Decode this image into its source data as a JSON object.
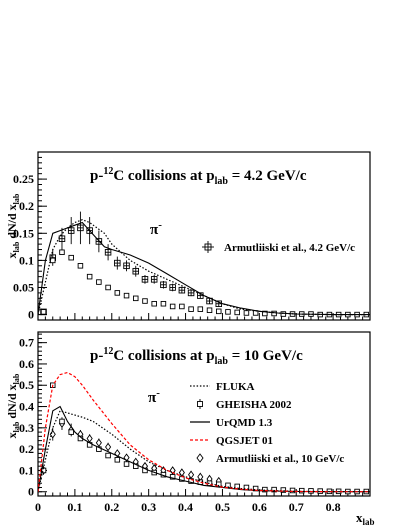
{
  "chart_data": [
    {
      "type": "line",
      "title": "p-¹²C collisions at pₗₐᵦ = 4.2 GeV/c",
      "title_parts": {
        "a": "p-",
        "sup": "12",
        "b": "C collisions at p",
        "sub": "lab",
        "c": " = 4.2 GeV/c"
      },
      "particle_label": "π",
      "particle_sup": "-",
      "ylabel": "x_lab dN/d x_lab",
      "ylabel_parts": {
        "x": "x",
        "sub1": "lab",
        "mid": " dN/d x",
        "sub2": "lab"
      },
      "xlim": [
        0,
        0.9
      ],
      "ylim": [
        -0.01,
        0.3
      ],
      "y_ticks": [
        "0",
        "0.05",
        "0.1",
        "0.15",
        "0.2",
        "0.25"
      ],
      "y_tick_values": [
        0,
        0.05,
        0.1,
        0.15,
        0.2,
        0.25
      ],
      "legend": [
        {
          "label": "Armutliiski et al., 4.2 GeV/c",
          "marker": "cross-square"
        }
      ],
      "series": [
        {
          "name": "Armutliiski et al., 4.2 GeV/c",
          "style": "data-cross",
          "x": [
            0.015,
            0.04,
            0.065,
            0.09,
            0.115,
            0.14,
            0.165,
            0.19,
            0.215,
            0.24,
            0.265,
            0.29,
            0.315,
            0.34,
            0.365,
            0.39,
            0.415,
            0.44,
            0.465,
            0.49
          ],
          "y": [
            0.005,
            0.105,
            0.14,
            0.155,
            0.16,
            0.155,
            0.135,
            0.115,
            0.095,
            0.09,
            0.08,
            0.065,
            0.065,
            0.055,
            0.05,
            0.045,
            0.04,
            0.035,
            0.025,
            0.02
          ],
          "err": [
            0.003,
            0.015,
            0.02,
            0.025,
            0.03,
            0.025,
            0.02,
            0.015,
            0.012,
            0.01,
            0.01,
            0.008,
            0.008,
            0.007,
            0.007,
            0.006,
            0.006,
            0.005,
            0.004,
            0.004
          ]
        },
        {
          "name": "GHEISHA 2002",
          "style": "square",
          "x": [
            0.015,
            0.04,
            0.065,
            0.09,
            0.115,
            0.14,
            0.165,
            0.19,
            0.215,
            0.24,
            0.265,
            0.29,
            0.315,
            0.34,
            0.365,
            0.39,
            0.415,
            0.44,
            0.465,
            0.49,
            0.515,
            0.54,
            0.565,
            0.59,
            0.615,
            0.64,
            0.665,
            0.69,
            0.715,
            0.74,
            0.765,
            0.79,
            0.815,
            0.84,
            0.865,
            0.89
          ],
          "y": [
            0.005,
            0.1,
            0.115,
            0.105,
            0.09,
            0.07,
            0.06,
            0.05,
            0.04,
            0.035,
            0.03,
            0.025,
            0.02,
            0.02,
            0.015,
            0.015,
            0.01,
            0.01,
            0.008,
            0.006,
            0.005,
            0.004,
            0.003,
            0.003,
            0.002,
            0.002,
            0.001,
            0.001,
            0.001,
            0.001,
            0.0,
            0.0,
            0.0,
            0.0,
            0.0,
            0.0
          ]
        },
        {
          "name": "FLUKA",
          "style": "dotted",
          "x": [
            0.0,
            0.02,
            0.04,
            0.06,
            0.08,
            0.1,
            0.12,
            0.14,
            0.16,
            0.18,
            0.2,
            0.25,
            0.3,
            0.35,
            0.4,
            0.45,
            0.5,
            0.55,
            0.6,
            0.65,
            0.7,
            0.8,
            0.9
          ],
          "y": [
            0.0,
            0.06,
            0.12,
            0.145,
            0.16,
            0.17,
            0.175,
            0.17,
            0.16,
            0.15,
            0.13,
            0.1,
            0.08,
            0.065,
            0.05,
            0.035,
            0.02,
            0.01,
            0.006,
            0.003,
            0.001,
            0.0,
            0.0
          ]
        },
        {
          "name": "UrQMD 1.3",
          "style": "solid",
          "x": [
            0.0,
            0.02,
            0.04,
            0.06,
            0.08,
            0.1,
            0.12,
            0.14,
            0.16,
            0.18,
            0.2,
            0.25,
            0.3,
            0.35,
            0.4,
            0.45,
            0.5,
            0.55,
            0.6,
            0.65,
            0.7,
            0.8,
            0.9
          ],
          "y": [
            0.0,
            0.1,
            0.15,
            0.155,
            0.16,
            0.165,
            0.17,
            0.155,
            0.14,
            0.125,
            0.12,
            0.11,
            0.095,
            0.075,
            0.055,
            0.035,
            0.02,
            0.012,
            0.006,
            0.003,
            0.001,
            0.0,
            0.0
          ]
        }
      ]
    },
    {
      "type": "line",
      "title": "p-¹²C collisions at pₗₐᵦ = 10 GeV/c",
      "title_parts": {
        "a": "p-",
        "sup": "12",
        "b": "C collisions at p",
        "sub": "lab",
        "c": " = 10 GeV/c"
      },
      "particle_label": "π",
      "particle_sup": "-",
      "ylabel": "x_lab dN/d x_lab",
      "ylabel_parts": {
        "x": "x",
        "sub1": "lab",
        "mid": " dN/d x",
        "sub2": "lab"
      },
      "xlabel": "x_lab",
      "xlabel_parts": {
        "x": "x",
        "sub": "lab"
      },
      "xlim": [
        0,
        0.9
      ],
      "ylim": [
        -0.02,
        0.75
      ],
      "x_ticks": [
        "0",
        "0.1",
        "0.2",
        "0.3",
        "0.4",
        "0.5",
        "0.6",
        "0.7",
        "0.8"
      ],
      "x_tick_values": [
        0,
        0.1,
        0.2,
        0.3,
        0.4,
        0.5,
        0.6,
        0.7,
        0.8
      ],
      "y_ticks": [
        "0",
        "0.1",
        "0.2",
        "0.3",
        "0.4",
        "0.5",
        "0.6",
        "0.7"
      ],
      "y_tick_values": [
        0,
        0.1,
        0.2,
        0.3,
        0.4,
        0.5,
        0.6,
        0.7
      ],
      "legend": [
        {
          "label": "FLUKA",
          "marker": "dotted",
          "color": "#000000"
        },
        {
          "label": "GHEISHA 2002",
          "marker": "square",
          "color": "#000000"
        },
        {
          "label": "UrQMD 1.3",
          "marker": "solid",
          "color": "#000000"
        },
        {
          "label": "QGSJET 01",
          "marker": "dashed",
          "color": "#ff0000"
        },
        {
          "label": "Armutliiski et al., 10 GeV/c",
          "marker": "diamond",
          "color": "#000000"
        }
      ],
      "series": [
        {
          "name": "Armutliiski et al., 10 GeV/c",
          "style": "data-diamond",
          "x": [
            0.015,
            0.04,
            0.065,
            0.09,
            0.115,
            0.14,
            0.165,
            0.19,
            0.215,
            0.24,
            0.265,
            0.29,
            0.315,
            0.34,
            0.365,
            0.39,
            0.415,
            0.44,
            0.465,
            0.49
          ],
          "y": [
            0.1,
            0.27,
            0.32,
            0.29,
            0.27,
            0.25,
            0.23,
            0.21,
            0.18,
            0.16,
            0.14,
            0.12,
            0.11,
            0.1,
            0.1,
            0.09,
            0.08,
            0.07,
            0.06,
            0.05
          ],
          "err": [
            0.02,
            0.03,
            0.03,
            0.03,
            0.02,
            0.02,
            0.02,
            0.02,
            0.015,
            0.015,
            0.015,
            0.01,
            0.01,
            0.01,
            0.01,
            0.01,
            0.01,
            0.008,
            0.008,
            0.008
          ]
        },
        {
          "name": "GHEISHA 2002",
          "style": "square",
          "x": [
            0.015,
            0.04,
            0.065,
            0.09,
            0.115,
            0.14,
            0.165,
            0.19,
            0.215,
            0.24,
            0.265,
            0.29,
            0.315,
            0.34,
            0.365,
            0.39,
            0.415,
            0.44,
            0.465,
            0.49,
            0.515,
            0.54,
            0.565,
            0.59,
            0.615,
            0.64,
            0.665,
            0.69,
            0.715,
            0.74,
            0.765,
            0.79,
            0.815,
            0.84,
            0.865,
            0.89
          ],
          "y": [
            0.1,
            0.5,
            0.33,
            0.28,
            0.25,
            0.22,
            0.2,
            0.17,
            0.15,
            0.13,
            0.12,
            0.1,
            0.09,
            0.08,
            0.07,
            0.06,
            0.05,
            0.045,
            0.04,
            0.035,
            0.03,
            0.025,
            0.02,
            0.015,
            0.01,
            0.01,
            0.008,
            0.006,
            0.005,
            0.004,
            0.003,
            0.002,
            0.002,
            0.001,
            0.001,
            0.001
          ]
        },
        {
          "name": "FLUKA",
          "style": "dotted",
          "x": [
            0.0,
            0.02,
            0.04,
            0.06,
            0.08,
            0.1,
            0.12,
            0.15,
            0.2,
            0.25,
            0.3,
            0.35,
            0.4,
            0.45,
            0.5,
            0.55,
            0.6,
            0.7,
            0.8,
            0.9
          ],
          "y": [
            0.0,
            0.15,
            0.3,
            0.38,
            0.37,
            0.36,
            0.35,
            0.33,
            0.27,
            0.2,
            0.14,
            0.1,
            0.07,
            0.045,
            0.025,
            0.015,
            0.008,
            0.002,
            0.0,
            0.0
          ]
        },
        {
          "name": "UrQMD 1.3",
          "style": "solid",
          "x": [
            0.0,
            0.02,
            0.04,
            0.06,
            0.08,
            0.1,
            0.12,
            0.15,
            0.2,
            0.25,
            0.3,
            0.35,
            0.4,
            0.45,
            0.5,
            0.55,
            0.6,
            0.7,
            0.8,
            0.9
          ],
          "y": [
            0.0,
            0.2,
            0.38,
            0.4,
            0.33,
            0.28,
            0.25,
            0.22,
            0.18,
            0.14,
            0.1,
            0.07,
            0.05,
            0.03,
            0.02,
            0.01,
            0.005,
            0.001,
            0.0,
            0.0
          ]
        },
        {
          "name": "QGSJET 01",
          "style": "dashed",
          "color": "#ff0000",
          "x": [
            0.0,
            0.02,
            0.04,
            0.06,
            0.08,
            0.1,
            0.12,
            0.15,
            0.2,
            0.25,
            0.3,
            0.35,
            0.4,
            0.45,
            0.5,
            0.55,
            0.6,
            0.7,
            0.8,
            0.9
          ],
          "y": [
            0.0,
            0.3,
            0.5,
            0.55,
            0.56,
            0.54,
            0.5,
            0.43,
            0.32,
            0.22,
            0.15,
            0.1,
            0.065,
            0.04,
            0.022,
            0.012,
            0.006,
            0.001,
            0.0,
            0.0
          ]
        }
      ]
    }
  ]
}
